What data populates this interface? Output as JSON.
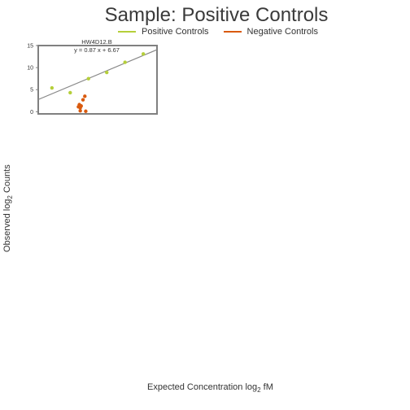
{
  "title": "Sample: Positive Controls",
  "legend": {
    "positive": {
      "label": "Positive Controls",
      "color": "#b5cf3a"
    },
    "negative": {
      "label": "Negative Controls",
      "color": "#d95a0e"
    }
  },
  "axes": {
    "ylabel_pre": "Observed log",
    "ylabel_sub": "2",
    "ylabel_post": " Counts",
    "xlabel_pre": "Expected Concentration log",
    "xlabel_sub": "2",
    "xlabel_post": " fM"
  },
  "chart_data": {
    "type": "scatter",
    "panel_title": "HW4D12.B",
    "fit_equation": "y = 0.87 x + 6.67",
    "fit": {
      "slope": 0.87,
      "intercept": 6.67,
      "color": "#888888"
    },
    "xlim": [
      -4.5,
      8.5
    ],
    "ylim": [
      -0.5,
      15
    ],
    "yticks": [
      "0",
      "5",
      "10",
      "15"
    ],
    "series": [
      {
        "name": "Positive Controls",
        "color": "#b5cf3a",
        "x": [
          -3,
          -1,
          1,
          3,
          5,
          7
        ],
        "y": [
          5.4,
          4.3,
          7.5,
          8.9,
          11.2,
          13.1
        ]
      },
      {
        "name": "Negative Controls",
        "color": "#d95a0e",
        "x": [
          0.0,
          0.2,
          -0.1,
          0.1,
          0.4,
          0.6,
          0.7,
          0.1
        ],
        "y": [
          1.6,
          1.3,
          1.1,
          0.2,
          2.7,
          3.5,
          0.1,
          0.9
        ]
      }
    ]
  }
}
